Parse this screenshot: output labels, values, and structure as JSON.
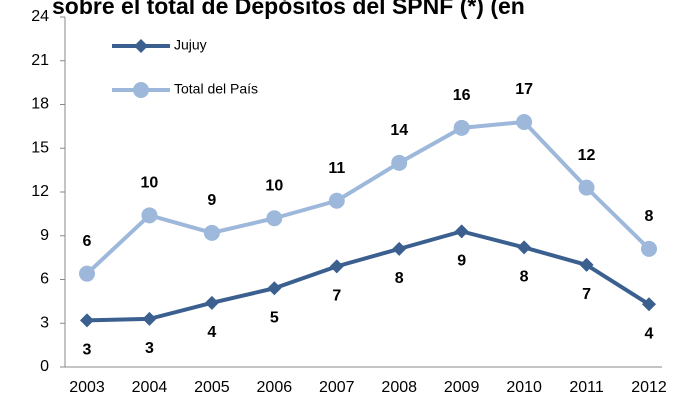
{
  "chart_data": {
    "type": "line",
    "title": "sobre el total de Depósitos del SPNF (*) (en",
    "categories": [
      "2003",
      "2004",
      "2005",
      "2006",
      "2007",
      "2008",
      "2009",
      "2010",
      "2011",
      "2012"
    ],
    "series": [
      {
        "name": "Jujuy",
        "color": "#3b6090",
        "marker": "diamond",
        "values": [
          3.2,
          3.3,
          4.4,
          5.4,
          6.9,
          8.1,
          9.3,
          8.2,
          7.0,
          4.3
        ],
        "value_labels": [
          "3",
          "3",
          "4",
          "5",
          "7",
          "8",
          "9",
          "8",
          "7",
          "4"
        ]
      },
      {
        "name": "Total del País",
        "color": "#9db8da",
        "marker": "circle",
        "values": [
          6.4,
          10.4,
          9.2,
          10.2,
          11.4,
          14.0,
          16.4,
          16.8,
          12.3,
          8.1
        ],
        "value_labels": [
          "6",
          "10",
          "9",
          "10",
          "11",
          "14",
          "16",
          "17",
          "12",
          "8"
        ]
      }
    ],
    "ylim": [
      0,
      24
    ],
    "yticks": [
      0,
      3,
      6,
      9,
      12,
      15,
      18,
      21,
      24
    ],
    "grid": false,
    "legend": "upper left"
  }
}
